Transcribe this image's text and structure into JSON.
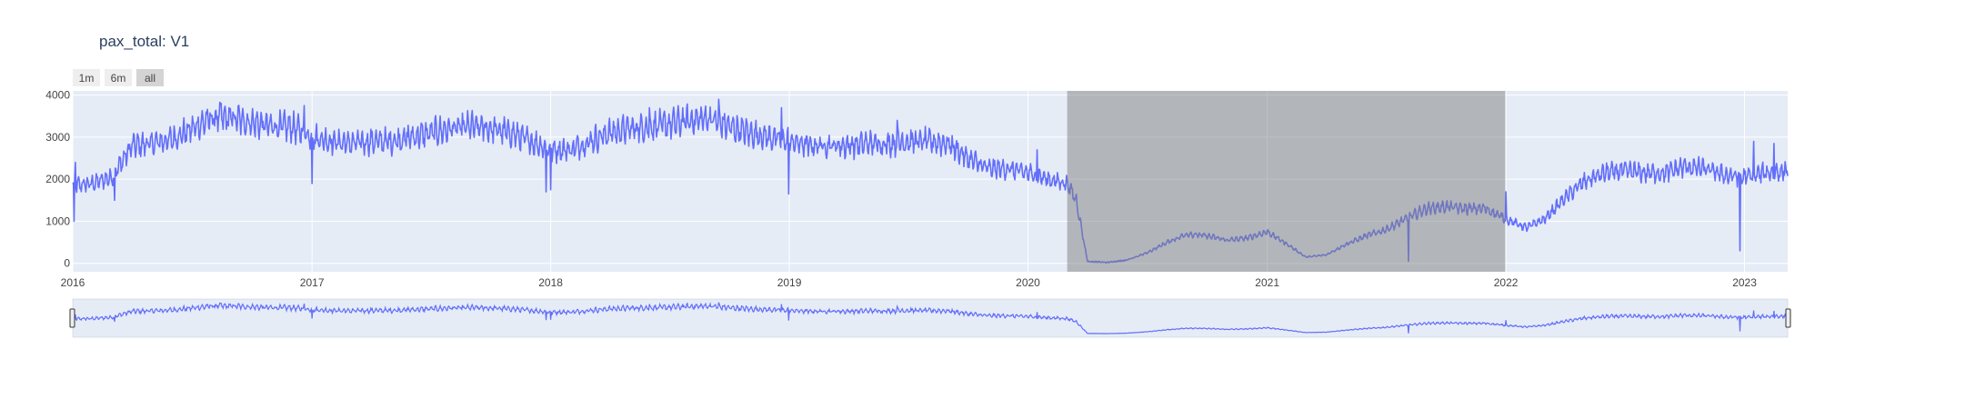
{
  "chart_data": {
    "type": "line",
    "title": "pax_total: V1",
    "xlabel": "",
    "ylabel": "",
    "x_range": [
      "2016-01-01",
      "2023-03-08"
    ],
    "ylim": [
      -200,
      4100
    ],
    "y_ticks": [
      0,
      1000,
      2000,
      3000,
      4000
    ],
    "x_ticks": [
      {
        "date": "2016-01-01",
        "label": "2016"
      },
      {
        "date": "2017-01-01",
        "label": "2017"
      },
      {
        "date": "2018-01-01",
        "label": "2018"
      },
      {
        "date": "2019-01-01",
        "label": "2019"
      },
      {
        "date": "2020-01-01",
        "label": "2020"
      },
      {
        "date": "2021-01-01",
        "label": "2021"
      },
      {
        "date": "2022-01-01",
        "label": "2022"
      },
      {
        "date": "2023-01-01",
        "label": "2023"
      }
    ],
    "grid": true,
    "range_selector": [
      "1m",
      "6m",
      "all"
    ],
    "active_range": "all",
    "shaded_region": [
      "2020-03-01",
      "2021-12-31"
    ],
    "series": [
      {
        "color": "#636efa",
        "points": [
          [
            "2016-01-01",
            1850
          ],
          [
            "2016-02-01",
            1900
          ],
          [
            "2016-03-01",
            2050
          ],
          [
            "2016-04-01",
            2800
          ],
          [
            "2016-05-01",
            2850
          ],
          [
            "2016-06-01",
            2950
          ],
          [
            "2016-07-01",
            3200
          ],
          [
            "2016-08-01",
            3450
          ],
          [
            "2016-09-01",
            3450
          ],
          [
            "2016-10-01",
            3350
          ],
          [
            "2016-11-01",
            3250
          ],
          [
            "2016-12-01",
            3250
          ],
          [
            "2017-01-01",
            3000
          ],
          [
            "2017-02-01",
            2900
          ],
          [
            "2017-03-01",
            2850
          ],
          [
            "2017-04-01",
            2900
          ],
          [
            "2017-05-01",
            2900
          ],
          [
            "2017-06-01",
            3000
          ],
          [
            "2017-07-01",
            3100
          ],
          [
            "2017-08-01",
            3200
          ],
          [
            "2017-09-01",
            3250
          ],
          [
            "2017-10-01",
            3200
          ],
          [
            "2017-11-01",
            3100
          ],
          [
            "2017-12-01",
            2900
          ],
          [
            "2018-01-01",
            2700
          ],
          [
            "2018-02-01",
            2700
          ],
          [
            "2018-03-01",
            2900
          ],
          [
            "2018-04-01",
            3100
          ],
          [
            "2018-05-01",
            3200
          ],
          [
            "2018-06-01",
            3250
          ],
          [
            "2018-07-01",
            3300
          ],
          [
            "2018-08-01",
            3400
          ],
          [
            "2018-09-01",
            3450
          ],
          [
            "2018-10-01",
            3250
          ],
          [
            "2018-11-01",
            3100
          ],
          [
            "2018-12-01",
            3000
          ],
          [
            "2019-01-01",
            2900
          ],
          [
            "2019-02-01",
            2800
          ],
          [
            "2019-03-01",
            2800
          ],
          [
            "2019-04-01",
            2800
          ],
          [
            "2019-05-01",
            2850
          ],
          [
            "2019-06-01",
            2850
          ],
          [
            "2019-07-01",
            2900
          ],
          [
            "2019-08-01",
            2900
          ],
          [
            "2019-09-01",
            2850
          ],
          [
            "2019-10-01",
            2500
          ],
          [
            "2019-11-01",
            2250
          ],
          [
            "2019-12-01",
            2250
          ],
          [
            "2020-01-01",
            2150
          ],
          [
            "2020-02-01",
            2000
          ],
          [
            "2020-03-01",
            1900
          ],
          [
            "2020-03-15",
            1500
          ],
          [
            "2020-04-01",
            50
          ],
          [
            "2020-05-01",
            20
          ],
          [
            "2020-06-01",
            80
          ],
          [
            "2020-07-01",
            250
          ],
          [
            "2020-08-01",
            500
          ],
          [
            "2020-09-01",
            700
          ],
          [
            "2020-10-01",
            650
          ],
          [
            "2020-11-01",
            550
          ],
          [
            "2020-12-01",
            600
          ],
          [
            "2021-01-01",
            750
          ],
          [
            "2021-02-01",
            450
          ],
          [
            "2021-03-01",
            150
          ],
          [
            "2021-04-01",
            200
          ],
          [
            "2021-05-01",
            450
          ],
          [
            "2021-06-01",
            650
          ],
          [
            "2021-07-01",
            800
          ],
          [
            "2021-08-01",
            1050
          ],
          [
            "2021-09-01",
            1300
          ],
          [
            "2021-10-01",
            1350
          ],
          [
            "2021-11-01",
            1300
          ],
          [
            "2021-12-01",
            1300
          ],
          [
            "2022-01-01",
            1050
          ],
          [
            "2022-02-01",
            850
          ],
          [
            "2022-03-01",
            1050
          ],
          [
            "2022-04-01",
            1550
          ],
          [
            "2022-05-01",
            1950
          ],
          [
            "2022-06-01",
            2150
          ],
          [
            "2022-07-01",
            2200
          ],
          [
            "2022-08-01",
            2150
          ],
          [
            "2022-09-01",
            2150
          ],
          [
            "2022-10-01",
            2300
          ],
          [
            "2022-11-01",
            2250
          ],
          [
            "2022-12-01",
            2100
          ],
          [
            "2023-01-01",
            2050
          ],
          [
            "2023-02-01",
            2150
          ],
          [
            "2023-03-08",
            2200
          ]
        ],
        "spikes": [
          [
            "2016-01-03",
            1000
          ],
          [
            "2016-01-05",
            2400
          ],
          [
            "2016-03-05",
            1500
          ],
          [
            "2016-05-01",
            3100
          ],
          [
            "2016-08-15",
            3800
          ],
          [
            "2016-12-20",
            3750
          ],
          [
            "2017-01-01",
            1900
          ],
          [
            "2017-07-01",
            3300
          ],
          [
            "2017-12-25",
            1700
          ],
          [
            "2018-01-01",
            1750
          ],
          [
            "2018-06-01",
            3700
          ],
          [
            "2018-09-15",
            3900
          ],
          [
            "2018-12-20",
            3700
          ],
          [
            "2018-12-31",
            1650
          ],
          [
            "2019-06-15",
            3400
          ],
          [
            "2020-01-15",
            2700
          ],
          [
            "2021-08-05",
            50
          ],
          [
            "2022-01-01",
            1700
          ],
          [
            "2022-12-25",
            300
          ],
          [
            "2023-01-15",
            2900
          ],
          [
            "2023-02-15",
            2850
          ]
        ]
      }
    ]
  }
}
